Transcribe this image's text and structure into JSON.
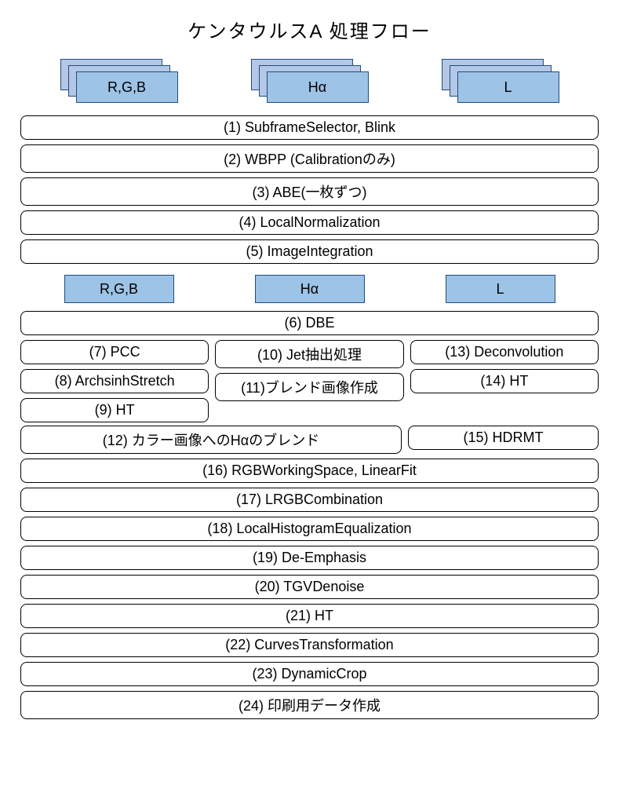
{
  "title": "ケンタウルスA 処理フロー",
  "colors": {
    "card_fill": "#9dc3e6",
    "card_back_fill": "#b4c7e7",
    "card_border": "#1f4e79",
    "step_border": "#000000",
    "background": "#ffffff",
    "text": "#000000"
  },
  "fontsize": {
    "title": 24,
    "label": 18
  },
  "stacks": {
    "rgb": "R,G,B",
    "ha": "Hα",
    "l": "L"
  },
  "singles": {
    "rgb": "R,G,B",
    "ha": "Hα",
    "l": "L"
  },
  "steps_top": [
    "(1)    SubframeSelector, Blink",
    "(2) WBPP (Calibrationのみ)",
    "(3) ABE(一枚ずつ)",
    "(4) LocalNormalization",
    "(5) ImageIntegration"
  ],
  "step6": "(6) DBE",
  "col_rgb": [
    "(7) PCC",
    "(8) ArchsinhStretch",
    "(9) HT"
  ],
  "col_ha": [
    "(10) Jet抽出処理",
    "(11)ブレンド画像作成"
  ],
  "col_l": [
    "(13) Deconvolution",
    "(14) HT",
    "(15) HDRMT"
  ],
  "step12": "(12) カラー画像へのHαのブレンド",
  "steps_bottom": [
    "(16) RGBWorkingSpace, LinearFit",
    "(17) LRGBCombination",
    "(18) LocalHistogramEqualization",
    "(19) De-Emphasis",
    "(20) TGVDenoise",
    "(21) HT",
    "(22) CurvesTransformation",
    "(23) DynamicCrop",
    "(24) 印刷用データ作成"
  ]
}
